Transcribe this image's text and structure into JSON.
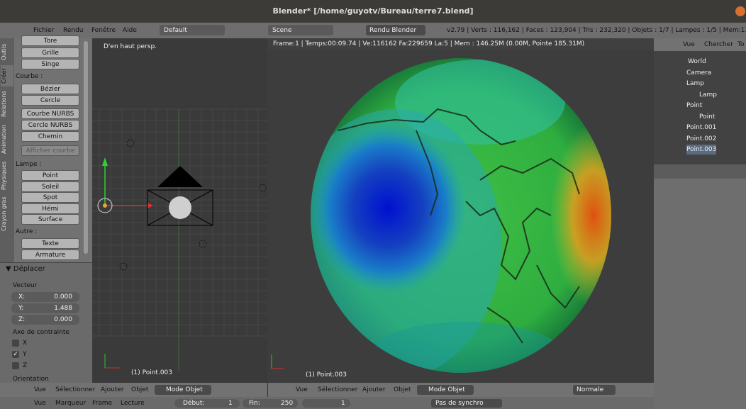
{
  "title": "Blender* [/home/guyotv/Bureau/terre7.blend]",
  "menu": {
    "items": [
      "Fichier",
      "Rendu",
      "Fenêtre",
      "Aide"
    ],
    "layout": "Default",
    "scene": "Scene",
    "engine": "Rendu Blender",
    "stats": "v2.79 | Verts : 116,162 | Faces : 123,904 | Tris : 232,320 | Objets : 1/7 | Lampes : 1/5 | Mem:137.80M"
  },
  "toolshelf": {
    "tabs": [
      "Outils",
      "Créer",
      "Relations",
      "Animation",
      "Physiques",
      "Crayon gras"
    ],
    "items": [
      "Tore",
      "Grille",
      "Singe",
      "Courbe :",
      "Bézier",
      "Cercle",
      "Courbe NURBS",
      "Cercle NURBS",
      "Chemin",
      "Afficher courbe",
      "Lampe :",
      "Point",
      "Soleil",
      "Spot",
      "Hémi",
      "Surface",
      "Autre :",
      "Texte",
      "Armature"
    ]
  },
  "operator": {
    "title": "Déplacer",
    "vector_label": "Vecteur",
    "fields": [
      {
        "label": "X:",
        "value": "0.000"
      },
      {
        "label": "Y:",
        "value": "1.488"
      },
      {
        "label": "Z:",
        "value": "0.000"
      }
    ],
    "constraint_label": "Axe de contrainte",
    "axes": [
      "X",
      "Y",
      "Z"
    ],
    "orientation": "Orientation"
  },
  "left_view": {
    "label": "D'en haut persp.",
    "object": "(1) Point.003"
  },
  "right_view": {
    "info": "Frame:1 | Temps:00:09.74 | Ve:116162 Fa:229659 La:5 | Mem : 146.25M (0.00M, Pointe 185.31M)",
    "object": "(1) Point.003"
  },
  "outliner": {
    "header": [
      "Vue",
      "Chercher",
      "To"
    ],
    "rows": [
      "World",
      "Camera",
      "Lamp",
      "Lamp",
      "Point",
      "Point",
      "Point.001",
      "Point.002",
      "Point.003"
    ]
  },
  "view_header": {
    "items": [
      "Vue",
      "Sélectionner",
      "Ajouter",
      "Objet"
    ],
    "mode": "Mode Objet",
    "pivot": "Normale"
  },
  "timeline": {
    "items": [
      "Vue",
      "Marqueur",
      "Frame",
      "Lecture"
    ],
    "start_label": "Début:",
    "start": "1",
    "end_label": "Fin:",
    "end": "250",
    "current": "1",
    "sync": "Pas de synchro"
  }
}
